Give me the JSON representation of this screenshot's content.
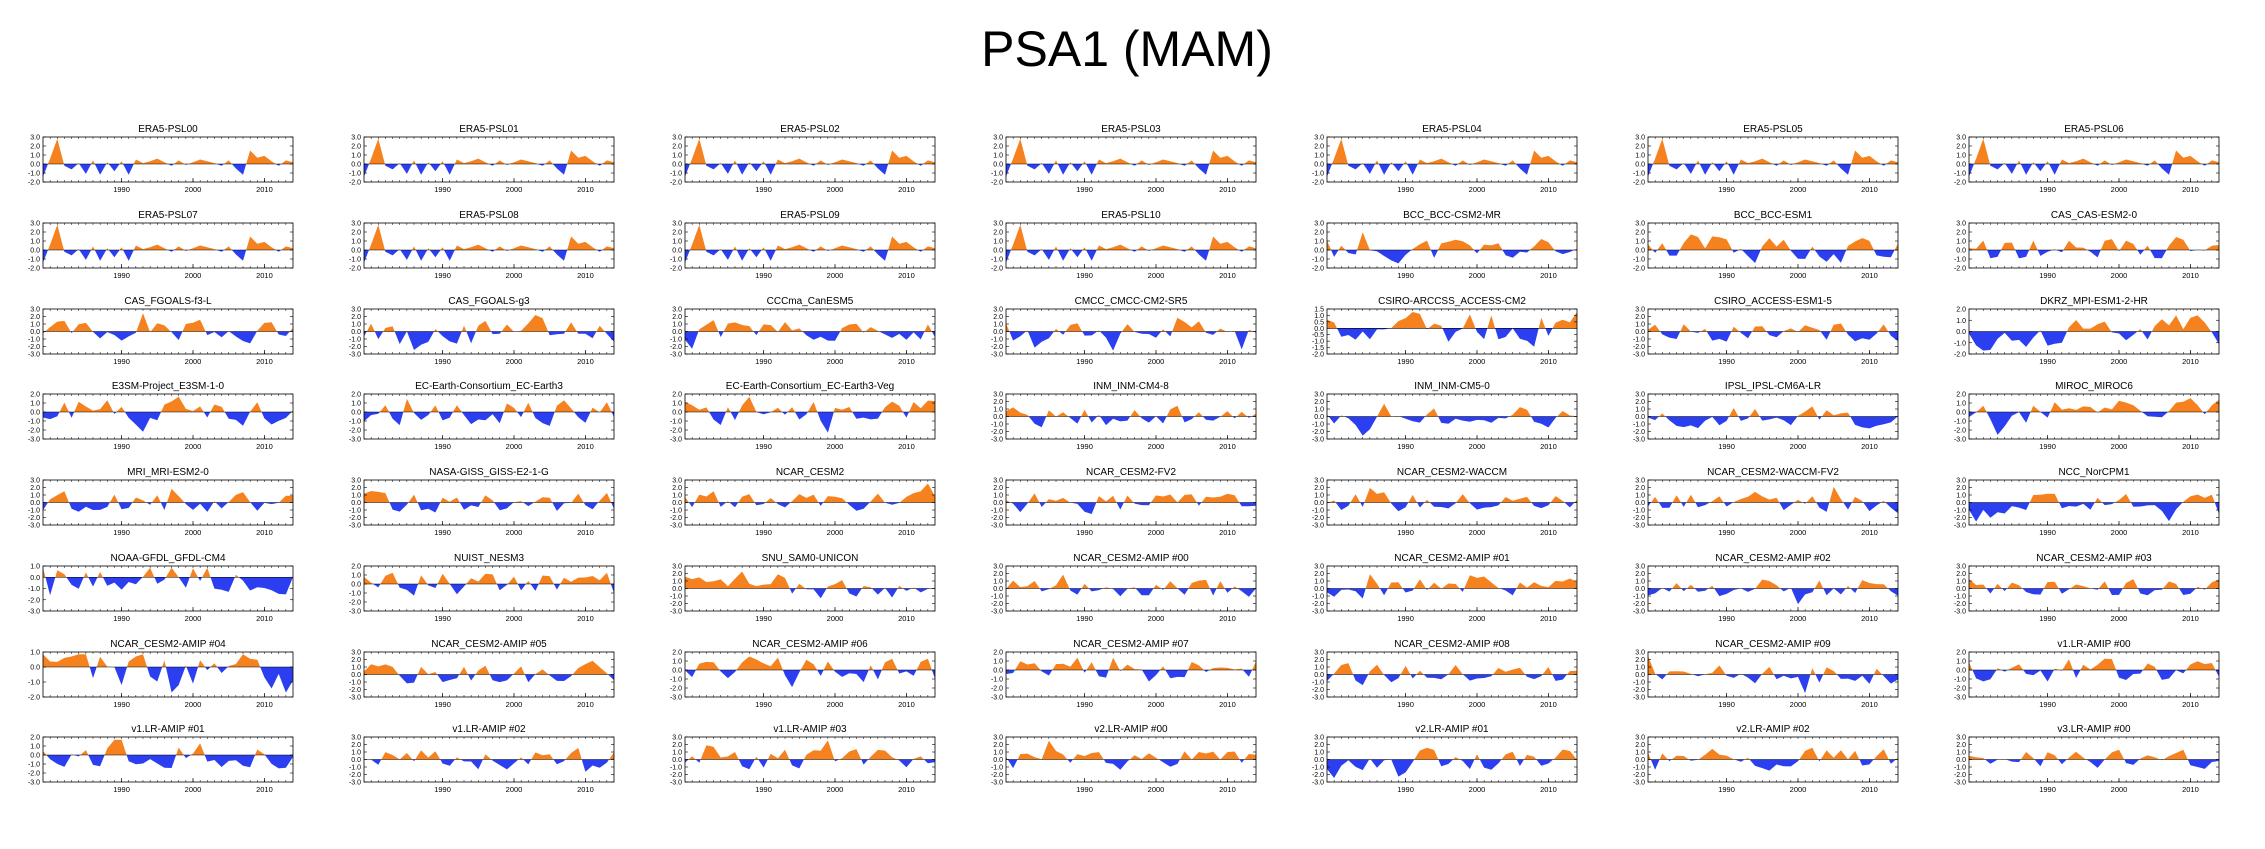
{
  "page_title": "PSA1 (MAM)",
  "colors": {
    "positive": "#f5821f",
    "negative": "#2b3ff0",
    "axis": "#000000"
  },
  "chart_data": {
    "type": "area",
    "title": "PSA1 (MAM)",
    "x_tick_labels": [
      "1990",
      "2000",
      "2010"
    ],
    "x_ticks": [
      1990,
      2000,
      2010
    ],
    "xlim": [
      1979,
      2014
    ],
    "years": [
      1979,
      1980,
      1981,
      1982,
      1983,
      1984,
      1985,
      1986,
      1987,
      1988,
      1989,
      1990,
      1991,
      1992,
      1993,
      1994,
      1995,
      1996,
      1997,
      1998,
      1999,
      2000,
      2001,
      2002,
      2003,
      2004,
      2005,
      2006,
      2007,
      2008,
      2009,
      2010,
      2011,
      2012,
      2013,
      2014
    ],
    "axis_sets": {
      "A": {
        "ylim": [
          -2,
          3
        ],
        "ticks": [
          3,
          2,
          1,
          0,
          -1,
          -2
        ],
        "labels": [
          "3.0",
          "2.0",
          "1.0",
          "0.0",
          "-1.0",
          "-2.0"
        ]
      },
      "B": {
        "ylim": [
          -3,
          3
        ],
        "ticks": [
          3,
          2,
          1,
          0,
          -1,
          -2,
          -3
        ],
        "labels": [
          "3.0",
          "2.0",
          "1.0",
          "0.0",
          "-1.0",
          "-2.0",
          "-3.0"
        ]
      },
      "C": {
        "ylim": [
          -3,
          2
        ],
        "ticks": [
          2,
          1,
          0,
          -1,
          -2,
          -3
        ],
        "labels": [
          "2.0",
          "1.0",
          "0.0",
          "-1.0",
          "-2.0",
          "-3.0"
        ]
      },
      "D": {
        "ylim": [
          -2,
          1.5
        ],
        "ticks": [
          1.5,
          1,
          0.5,
          0,
          -0.5,
          -1,
          -1.5,
          -2
        ],
        "labels": [
          "1.5",
          "1.0",
          "0.5",
          "0.0",
          "-0.5",
          "-1.0",
          "-1.5",
          "-2.0"
        ]
      },
      "E": {
        "ylim": [
          -2,
          2
        ],
        "ticks": [
          2,
          1,
          0,
          -1,
          -2
        ],
        "labels": [
          "2.0",
          "1.0",
          "0.0",
          "-1.0",
          "-2.0"
        ]
      },
      "F": {
        "ylim": [
          -3,
          1
        ],
        "ticks": [
          1,
          0,
          -1,
          -2,
          -3
        ],
        "labels": [
          "1.0",
          "0.0",
          "-1.0",
          "-2.0",
          "-3.0"
        ]
      },
      "G": {
        "ylim": [
          -2,
          1
        ],
        "ticks": [
          1,
          0,
          -1,
          -2
        ],
        "labels": [
          "1.0",
          "0.0",
          "-1.0",
          "-2.0"
        ]
      }
    },
    "panels": [
      {
        "name": "ERA5-PSL00",
        "axis": "A",
        "seed": 1
      },
      {
        "name": "ERA5-PSL01",
        "axis": "A",
        "seed": 1
      },
      {
        "name": "ERA5-PSL02",
        "axis": "A",
        "seed": 1
      },
      {
        "name": "ERA5-PSL03",
        "axis": "A",
        "seed": 1
      },
      {
        "name": "ERA5-PSL04",
        "axis": "A",
        "seed": 1
      },
      {
        "name": "ERA5-PSL05",
        "axis": "A",
        "seed": 1
      },
      {
        "name": "ERA5-PSL06",
        "axis": "A",
        "seed": 1
      },
      {
        "name": "ERA5-PSL07",
        "axis": "A",
        "seed": 1
      },
      {
        "name": "ERA5-PSL08",
        "axis": "A",
        "seed": 1
      },
      {
        "name": "ERA5-PSL09",
        "axis": "A",
        "seed": 1
      },
      {
        "name": "ERA5-PSL10",
        "axis": "A",
        "seed": 1
      },
      {
        "name": "BCC_BCC-CSM2-MR",
        "axis": "A",
        "seed": 11
      },
      {
        "name": "BCC_BCC-ESM1",
        "axis": "A",
        "seed": 12
      },
      {
        "name": "CAS_CAS-ESM2-0",
        "axis": "A",
        "seed": 13
      },
      {
        "name": "CAS_FGOALS-f3-L",
        "axis": "B",
        "seed": 14
      },
      {
        "name": "CAS_FGOALS-g3",
        "axis": "B",
        "seed": 15
      },
      {
        "name": "CCCma_CanESM5",
        "axis": "B",
        "seed": 16
      },
      {
        "name": "CMCC_CMCC-CM2-SR5",
        "axis": "B",
        "seed": 17
      },
      {
        "name": "CSIRO-ARCCSS_ACCESS-CM2",
        "axis": "D",
        "seed": 18
      },
      {
        "name": "CSIRO_ACCESS-ESM1-5",
        "axis": "B",
        "seed": 19
      },
      {
        "name": "DKRZ_MPI-ESM1-2-HR",
        "axis": "E",
        "seed": 20
      },
      {
        "name": "E3SM-Project_E3SM-1-0",
        "axis": "C",
        "seed": 21
      },
      {
        "name": "EC-Earth-Consortium_EC-Earth3",
        "axis": "C",
        "seed": 22
      },
      {
        "name": "EC-Earth-Consortium_EC-Earth3-Veg",
        "axis": "C",
        "seed": 23
      },
      {
        "name": "INM_INM-CM4-8",
        "axis": "B",
        "seed": 24
      },
      {
        "name": "INM_INM-CM5-0",
        "axis": "B",
        "seed": 25
      },
      {
        "name": "IPSL_IPSL-CM6A-LR",
        "axis": "B",
        "seed": 26
      },
      {
        "name": "MIROC_MIROC6",
        "axis": "C",
        "seed": 27
      },
      {
        "name": "MRI_MRI-ESM2-0",
        "axis": "B",
        "seed": 28
      },
      {
        "name": "NASA-GISS_GISS-E2-1-G",
        "axis": "B",
        "seed": 29
      },
      {
        "name": "NCAR_CESM2",
        "axis": "B",
        "seed": 30
      },
      {
        "name": "NCAR_CESM2-FV2",
        "axis": "B",
        "seed": 31
      },
      {
        "name": "NCAR_CESM2-WACCM",
        "axis": "B",
        "seed": 32
      },
      {
        "name": "NCAR_CESM2-WACCM-FV2",
        "axis": "B",
        "seed": 33
      },
      {
        "name": "NCC_NorCPM1",
        "axis": "B",
        "seed": 34
      },
      {
        "name": "NOAA-GFDL_GFDL-CM4",
        "axis": "F",
        "seed": 35
      },
      {
        "name": "NUIST_NESM3",
        "axis": "C",
        "seed": 36
      },
      {
        "name": "SNU_SAM0-UNICON",
        "axis": "B",
        "seed": 37
      },
      {
        "name": "NCAR_CESM2-AMIP  #00",
        "axis": "B",
        "seed": 38
      },
      {
        "name": "NCAR_CESM2-AMIP  #01",
        "axis": "B",
        "seed": 39
      },
      {
        "name": "NCAR_CESM2-AMIP  #02",
        "axis": "B",
        "seed": 40
      },
      {
        "name": "NCAR_CESM2-AMIP  #03",
        "axis": "B",
        "seed": 41
      },
      {
        "name": "NCAR_CESM2-AMIP  #04",
        "axis": "G",
        "seed": 42
      },
      {
        "name": "NCAR_CESM2-AMIP  #05",
        "axis": "B",
        "seed": 43
      },
      {
        "name": "NCAR_CESM2-AMIP  #06",
        "axis": "C",
        "seed": 44
      },
      {
        "name": "NCAR_CESM2-AMIP  #07",
        "axis": "C",
        "seed": 45
      },
      {
        "name": "NCAR_CESM2-AMIP  #08",
        "axis": "B",
        "seed": 46
      },
      {
        "name": "NCAR_CESM2-AMIP  #09",
        "axis": "B",
        "seed": 47
      },
      {
        "name": "v1.LR-AMIP  #00",
        "axis": "C",
        "seed": 48
      },
      {
        "name": "v1.LR-AMIP  #01",
        "axis": "C",
        "seed": 49
      },
      {
        "name": "v1.LR-AMIP  #02",
        "axis": "B",
        "seed": 50
      },
      {
        "name": "v1.LR-AMIP  #03",
        "axis": "B",
        "seed": 51
      },
      {
        "name": "v2.LR-AMIP  #00",
        "axis": "B",
        "seed": 52
      },
      {
        "name": "v2.LR-AMIP  #01",
        "axis": "B",
        "seed": 53
      },
      {
        "name": "v2.LR-AMIP  #02",
        "axis": "B",
        "seed": 54
      },
      {
        "name": "v3.LR-AMIP  #00",
        "axis": "B",
        "seed": 55
      }
    ]
  }
}
